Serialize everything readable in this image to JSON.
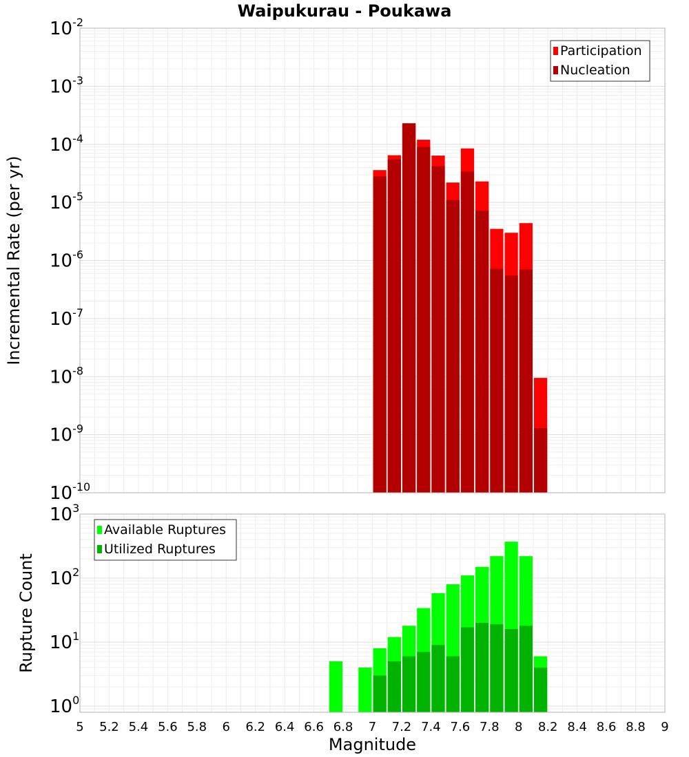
{
  "title": "Waipukurau - Poukawa",
  "chart_data": {
    "type": "bar",
    "x_ticks": [
      "5",
      "5.2",
      "5.4",
      "5.6",
      "5.8",
      "6",
      "6.2",
      "6.4",
      "6.6",
      "6.8",
      "7",
      "7.2",
      "7.4",
      "7.6",
      "7.8",
      "8",
      "8.2",
      "8.4",
      "8.6",
      "8.8",
      "9"
    ],
    "xlabel": "Magnitude",
    "xlim": [
      5,
      9
    ],
    "bin_width": 0.1,
    "panels": [
      {
        "id": "rate",
        "ylabel": "Incremental Rate (per yr)",
        "yscale": "log",
        "ylim": [
          1e-10,
          0.01
        ],
        "y_tick_exponents": [
          "-10",
          "-9",
          "-8",
          "-7",
          "-6",
          "-5",
          "-4",
          "-3",
          "-2"
        ],
        "legend_position": "top-right",
        "series": [
          {
            "name": "Participation",
            "color": "#ff0000",
            "x": [
              7.05,
              7.15,
              7.25,
              7.35,
              7.45,
              7.55,
              7.65,
              7.75,
              7.85,
              7.95,
              8.05,
              8.15
            ],
            "values": [
              3.6e-05,
              6.5e-05,
              0.00023,
              0.00012,
              6.4e-05,
              2.2e-05,
              8.5e-05,
              2.3e-05,
              3.5e-06,
              3e-06,
              4.4e-06,
              9.5e-09
            ]
          },
          {
            "name": "Nucleation",
            "color": "#b30000",
            "x": [
              7.05,
              7.15,
              7.25,
              7.35,
              7.45,
              7.55,
              7.65,
              7.75,
              7.85,
              7.95,
              8.05,
              8.15
            ],
            "values": [
              2.8e-05,
              5.5e-05,
              0.00023,
              9e-05,
              4.2e-05,
              1.1e-05,
              3.4e-05,
              7.2e-06,
              7.2e-07,
              5.5e-07,
              7e-07,
              1.3e-09
            ]
          }
        ]
      },
      {
        "id": "count",
        "ylabel": "Rupture Count",
        "yscale": "log",
        "ylim": [
          0.8,
          1000
        ],
        "y_tick_exponents": [
          "0",
          "1",
          "2",
          "3"
        ],
        "legend_position": "top-left",
        "series": [
          {
            "name": "Available Ruptures",
            "color": "#00ff00",
            "x": [
              6.75,
              6.95,
              7.05,
              7.15,
              7.25,
              7.35,
              7.45,
              7.55,
              7.65,
              7.75,
              7.85,
              7.95,
              8.05,
              8.15
            ],
            "values": [
              5,
              4,
              8,
              12,
              18,
              34,
              58,
              80,
              110,
              150,
              220,
              370,
              220,
              6
            ]
          },
          {
            "name": "Utilized Ruptures",
            "color": "#00b300",
            "x": [
              7.05,
              7.15,
              7.25,
              7.35,
              7.45,
              7.55,
              7.65,
              7.75,
              7.85,
              7.95,
              8.05,
              8.15
            ],
            "values": [
              3,
              5,
              6,
              7,
              9,
              6,
              17,
              20,
              19,
              16,
              18,
              4
            ]
          }
        ]
      }
    ]
  }
}
